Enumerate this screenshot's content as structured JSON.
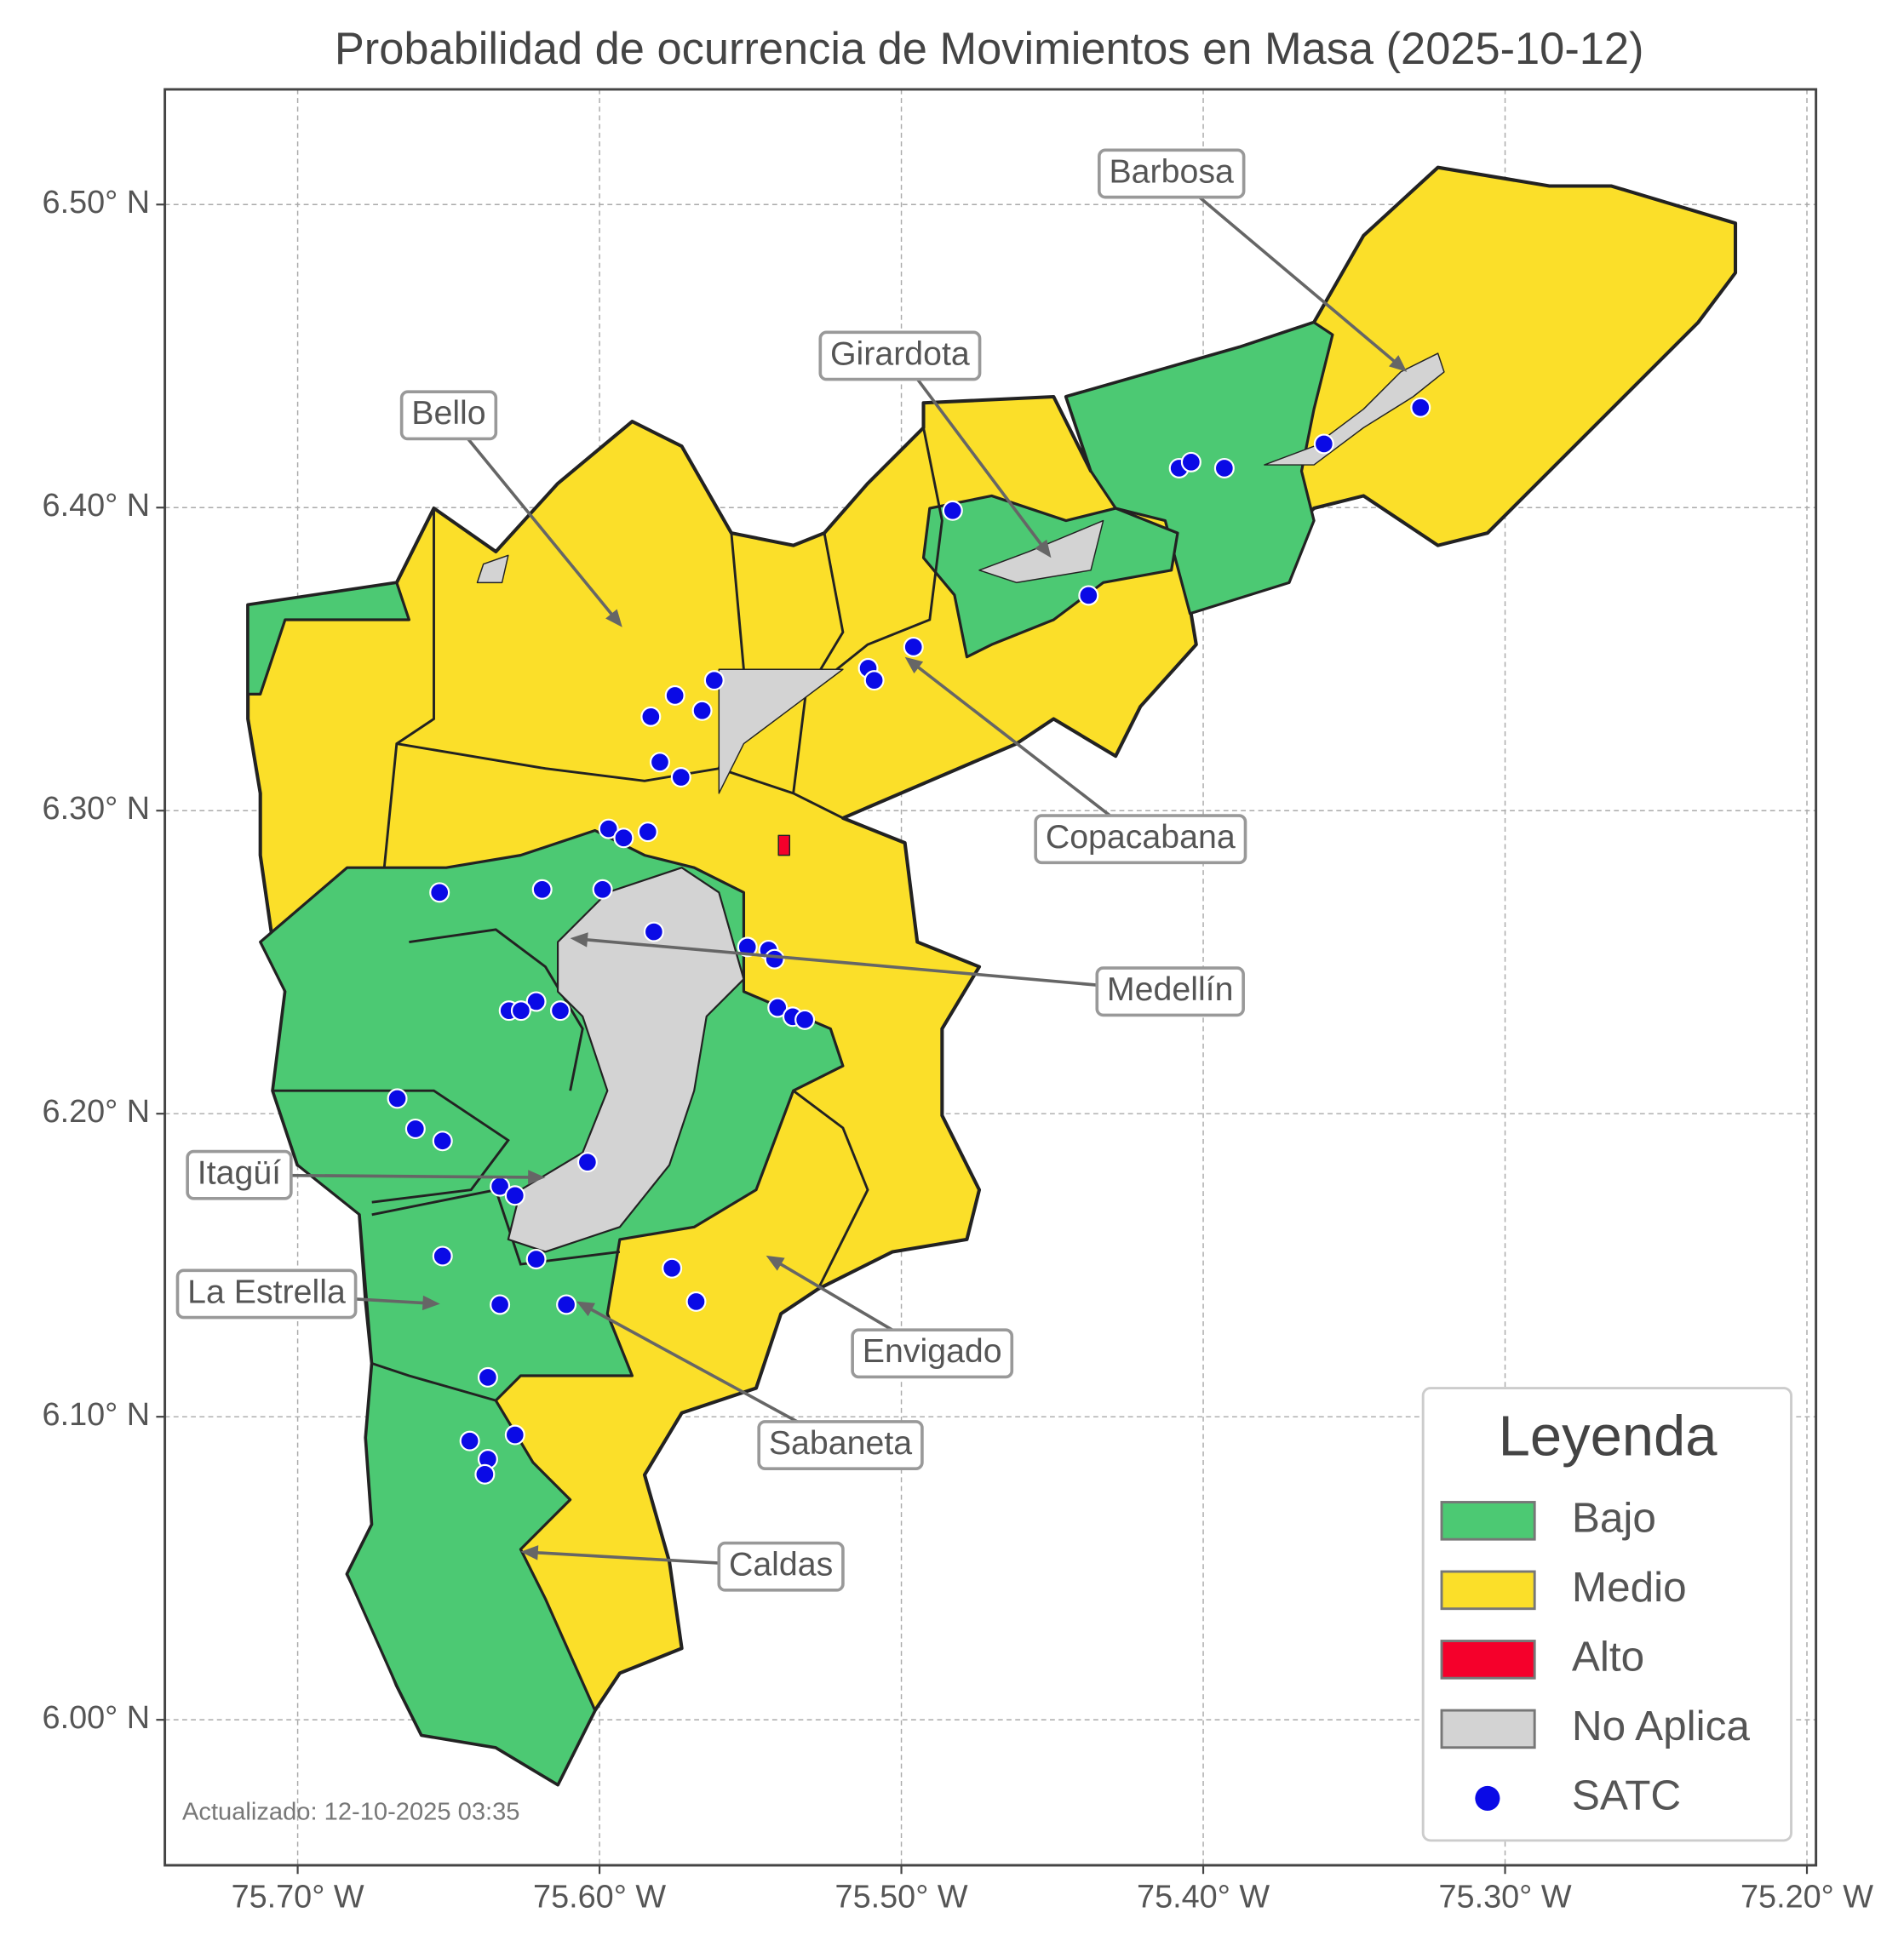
{
  "title": "Probabilidad de ocurrencia de Movimientos en Masa (2025-10-12)",
  "axes": {
    "xlim": [
      -75.744,
      -75.197
    ],
    "ylim": [
      5.952,
      6.538
    ],
    "xticks": [
      {
        "value": -75.7,
        "label": "75.70° W"
      },
      {
        "value": -75.6,
        "label": "75.60° W"
      },
      {
        "value": -75.5,
        "label": "75.50° W"
      },
      {
        "value": -75.4,
        "label": "75.40° W"
      },
      {
        "value": -75.3,
        "label": "75.30° W"
      },
      {
        "value": -75.2,
        "label": "75.20° W"
      }
    ],
    "yticks": [
      {
        "value": 6.0,
        "label": "6.00° N"
      },
      {
        "value": 6.1,
        "label": "6.10° N"
      },
      {
        "value": 6.2,
        "label": "6.20° N"
      },
      {
        "value": 6.3,
        "label": "6.30° N"
      },
      {
        "value": 6.4,
        "label": "6.40° N"
      },
      {
        "value": 6.5,
        "label": "6.50° N"
      }
    ],
    "grid": true
  },
  "annotations": [
    "Barbosa",
    "Girardota",
    "Bello",
    "Copacabana",
    "Medellín",
    "Itagüí",
    "La Estrella",
    "Envigado",
    "Sabaneta",
    "Caldas"
  ],
  "legend": {
    "title": "Leyenda",
    "items": [
      {
        "label": "Bajo",
        "color": "#4cc973"
      },
      {
        "label": "Medio",
        "color": "#fbdf29"
      },
      {
        "label": "Alto",
        "color": "#f5002b"
      },
      {
        "label": "No Aplica",
        "color": "#d3d3d3"
      },
      {
        "label": "SATC",
        "color": "#0a0ae6"
      }
    ]
  },
  "satc": {
    "lon": [
      -75.483,
      -75.408,
      -75.404,
      -75.393,
      -75.36,
      -75.328,
      -75.438,
      -75.496,
      -75.511,
      -75.509,
      -75.562,
      -75.575,
      -75.566,
      -75.583,
      -75.58,
      -75.573,
      -75.597,
      -75.584,
      -75.592,
      -75.653,
      -75.619,
      -75.599,
      -75.582,
      -75.551,
      -75.544,
      -75.542,
      -75.621,
      -75.63,
      -75.626,
      -75.613,
      -75.541,
      -75.536,
      -75.532,
      -75.667,
      -75.661,
      -75.652,
      -75.604,
      -75.633,
      -75.628,
      -75.652,
      -75.621,
      -75.576,
      -75.568,
      -75.633,
      -75.611,
      -75.637,
      -75.643,
      -75.628,
      -75.637,
      -75.638
    ],
    "lat": [
      6.399,
      6.413,
      6.415,
      6.413,
      6.421,
      6.433,
      6.371,
      6.354,
      6.347,
      6.343,
      6.343,
      6.338,
      6.333,
      6.331,
      6.316,
      6.311,
      6.294,
      6.293,
      6.291,
      6.273,
      6.274,
      6.274,
      6.26,
      6.255,
      6.254,
      6.251,
      6.237,
      6.234,
      6.234,
      6.234,
      6.235,
      6.232,
      6.231,
      6.205,
      6.195,
      6.191,
      6.184,
      6.176,
      6.173,
      6.153,
      6.152,
      6.149,
      6.138,
      6.137,
      6.137,
      6.113,
      6.092,
      6.094,
      6.086,
      6.081
    ]
  },
  "footnote": "Actualizado: 12-10-2025 03:35"
}
